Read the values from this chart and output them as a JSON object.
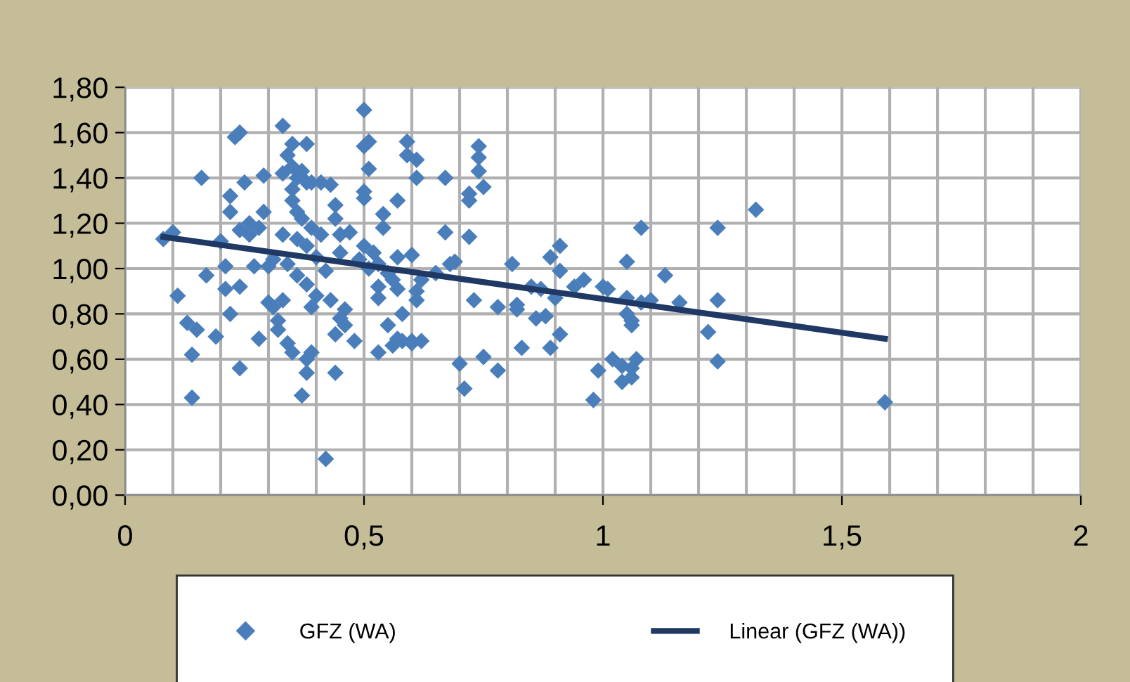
{
  "chart_data": {
    "type": "scatter",
    "xlim": [
      0,
      2
    ],
    "ylim": [
      0,
      1.8
    ],
    "xticks": [
      0,
      {
        "value": 0.1,
        "label": null
      },
      {
        "value": 0.2,
        "label": null
      },
      {
        "value": 0.3,
        "label": null
      },
      {
        "value": 0.4,
        "label": null
      },
      {
        "value": 0.5,
        "label": "0,5"
      },
      {
        "value": 0.6,
        "label": null
      },
      {
        "value": 0.7,
        "label": null
      },
      {
        "value": 0.8,
        "label": null
      },
      {
        "value": 0.9,
        "label": null
      },
      1,
      {
        "value": 1.1,
        "label": null
      },
      {
        "value": 1.2,
        "label": null
      },
      {
        "value": 1.3,
        "label": null
      },
      {
        "value": 1.4,
        "label": null
      },
      {
        "value": 1.5,
        "label": "1,5"
      },
      {
        "value": 1.6,
        "label": null
      },
      {
        "value": 1.7,
        "label": null
      },
      {
        "value": 1.8,
        "label": null
      },
      {
        "value": 1.9,
        "label": null
      },
      2
    ],
    "yticks": [
      {
        "value": 0,
        "label": "0,00"
      },
      {
        "value": 0.2,
        "label": "0,20"
      },
      {
        "value": 0.4,
        "label": "0,40"
      },
      {
        "value": 0.6,
        "label": "0,60"
      },
      {
        "value": 0.8,
        "label": "0,80"
      },
      {
        "value": 1,
        "label": "1,00"
      },
      {
        "value": 1.2,
        "label": "1,20"
      },
      {
        "value": 1.4,
        "label": "1,40"
      },
      {
        "value": 1.6,
        "label": "1,60"
      },
      {
        "value": 1.8,
        "label": "1,80"
      }
    ],
    "grid": true,
    "legend": "bottom",
    "series": [
      {
        "name": "GFZ (WA)",
        "marker": "diamond",
        "color": "#4a7ebb",
        "x": [
          0.08,
          0.1,
          0.11,
          0.13,
          0.14,
          0.14,
          0.15,
          0.16,
          0.17,
          0.19,
          0.2,
          0.21,
          0.21,
          0.22,
          0.22,
          0.22,
          0.23,
          0.24,
          0.24,
          0.24,
          0.24,
          0.25,
          0.26,
          0.26,
          0.27,
          0.28,
          0.28,
          0.29,
          0.29,
          0.3,
          0.3,
          0.31,
          0.31,
          0.32,
          0.32,
          0.33,
          0.33,
          0.33,
          0.33,
          0.34,
          0.34,
          0.34,
          0.35,
          0.35,
          0.35,
          0.35,
          0.35,
          0.36,
          0.36,
          0.36,
          0.36,
          0.37,
          0.37,
          0.37,
          0.38,
          0.38,
          0.38,
          0.38,
          0.38,
          0.38,
          0.39,
          0.39,
          0.39,
          0.39,
          0.4,
          0.4,
          0.41,
          0.41,
          0.42,
          0.42,
          0.43,
          0.43,
          0.44,
          0.44,
          0.44,
          0.44,
          0.45,
          0.45,
          0.45,
          0.46,
          0.46,
          0.47,
          0.48,
          0.49,
          0.5,
          0.5,
          0.5,
          0.5,
          0.5,
          0.51,
          0.51,
          0.51,
          0.52,
          0.53,
          0.53,
          0.53,
          0.53,
          0.54,
          0.54,
          0.55,
          0.55,
          0.56,
          0.56,
          0.57,
          0.57,
          0.57,
          0.57,
          0.58,
          0.58,
          0.59,
          0.59,
          0.6,
          0.6,
          0.6,
          0.61,
          0.61,
          0.61,
          0.61,
          0.62,
          0.62,
          0.65,
          0.67,
          0.67,
          0.68,
          0.69,
          0.7,
          0.71,
          0.72,
          0.72,
          0.72,
          0.73,
          0.74,
          0.74,
          0.74,
          0.75,
          0.75,
          0.78,
          0.78,
          0.81,
          0.82,
          0.82,
          0.83,
          0.85,
          0.86,
          0.87,
          0.88,
          0.89,
          0.89,
          0.9,
          0.91,
          0.91,
          0.91,
          0.94,
          0.96,
          0.98,
          0.99,
          1.0,
          1.01,
          1.02,
          1.04,
          1.04,
          1.05,
          1.05,
          1.05,
          1.06,
          1.06,
          1.06,
          1.06,
          1.07,
          1.08,
          1.08,
          1.1,
          1.13,
          1.16,
          1.22,
          1.24,
          1.24,
          1.24,
          1.32,
          1.59
        ],
        "values": [
          1.13,
          1.16,
          0.88,
          0.76,
          0.62,
          0.43,
          0.73,
          1.4,
          0.97,
          0.7,
          1.12,
          1.01,
          0.91,
          1.32,
          1.25,
          0.8,
          1.58,
          1.6,
          1.17,
          0.92,
          0.56,
          1.38,
          1.2,
          1.15,
          1.01,
          1.18,
          0.69,
          1.41,
          1.25,
          1.01,
          0.85,
          1.04,
          0.83,
          0.77,
          0.73,
          1.63,
          1.42,
          1.15,
          0.86,
          1.5,
          1.02,
          0.67,
          1.55,
          1.45,
          1.3,
          1.35,
          0.63,
          1.4,
          1.25,
          1.13,
          0.97,
          1.43,
          1.22,
          0.44,
          1.55,
          1.38,
          1.1,
          0.93,
          0.6,
          0.54,
          1.38,
          1.18,
          0.83,
          0.63,
          1.05,
          0.88,
          1.38,
          1.15,
          0.16,
          0.99,
          1.37,
          0.86,
          1.28,
          1.22,
          0.71,
          0.54,
          1.15,
          1.07,
          0.78,
          0.82,
          0.75,
          1.16,
          0.68,
          1.04,
          1.7,
          1.54,
          1.34,
          1.31,
          1.1,
          1.56,
          1.44,
          1.0,
          1.07,
          1.02,
          0.92,
          0.87,
          0.63,
          1.24,
          1.18,
          0.98,
          0.75,
          0.66,
          0.95,
          1.3,
          1.05,
          0.91,
          0.69,
          0.8,
          0.68,
          1.56,
          1.5,
          1.06,
          0.68,
          0.67,
          1.48,
          1.4,
          0.9,
          0.86,
          0.95,
          0.68,
          0.98,
          1.4,
          1.16,
          1.02,
          1.03,
          0.58,
          0.47,
          1.3,
          1.33,
          1.14,
          0.86,
          1.54,
          1.49,
          1.43,
          1.36,
          0.61,
          0.83,
          0.55,
          1.02,
          0.82,
          0.84,
          0.65,
          0.92,
          0.78,
          0.91,
          0.79,
          1.05,
          0.65,
          0.87,
          1.1,
          0.99,
          0.71,
          0.92,
          0.95,
          0.42,
          0.55,
          0.92,
          0.91,
          0.6,
          0.57,
          0.5,
          1.03,
          0.87,
          0.8,
          0.77,
          0.75,
          0.52,
          0.56,
          0.6,
          1.18,
          0.85,
          0.86,
          0.97,
          0.85,
          0.72,
          1.18,
          0.86,
          0.59,
          1.26,
          0.41
        ]
      },
      {
        "name": "Linear (GFZ (WA))",
        "type": "line",
        "marker": "none",
        "line_style": "solid",
        "color": "#1f3864",
        "x": [
          0.08,
          1.59
        ],
        "values": [
          1.14,
          0.69
        ]
      }
    ]
  }
}
